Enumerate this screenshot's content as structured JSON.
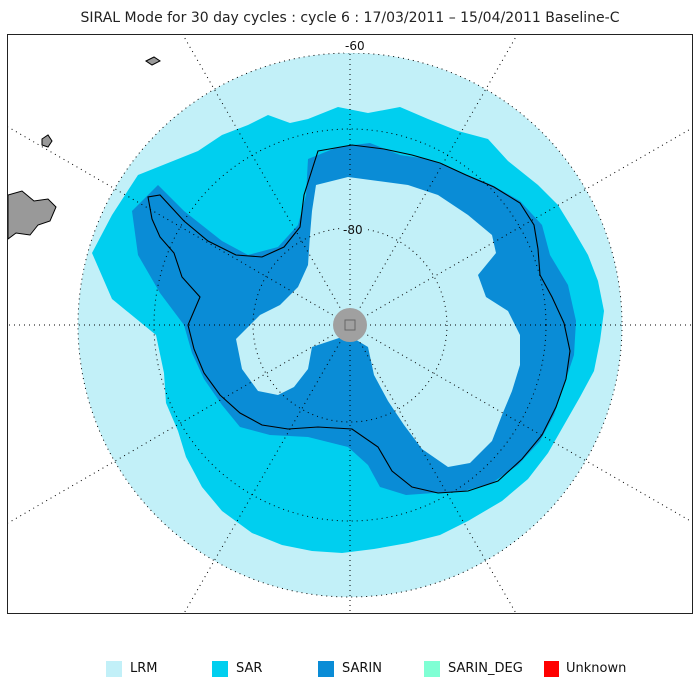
{
  "map": {
    "title": "SIRAL Mode for 30 day cycles : cycle 6 : 17/03/2011 – 15/04/2011 Baseline-C",
    "latitude_labels": [
      "-60",
      "-80"
    ],
    "projection": "south polar stereographic",
    "colors": {
      "LRM": "#c2f0f8",
      "SAR": "#00cfef",
      "SARIN": "#0a8cd6",
      "SARIN_DEG": "#7fffd4",
      "Unknown": "#ff0000",
      "land": "#999999",
      "pole_hole": "#a0a0a0",
      "coastline": "#000000",
      "graticule": "#000000"
    }
  },
  "legend": {
    "items": [
      {
        "label": "LRM",
        "color": "#c2f0f8"
      },
      {
        "label": "SAR",
        "color": "#00cfef"
      },
      {
        "label": "SARIN",
        "color": "#0a8cd6"
      },
      {
        "label": "SARIN_DEG",
        "color": "#7fffd4"
      },
      {
        "label": "Unknown",
        "color": "#ff0000"
      }
    ]
  }
}
